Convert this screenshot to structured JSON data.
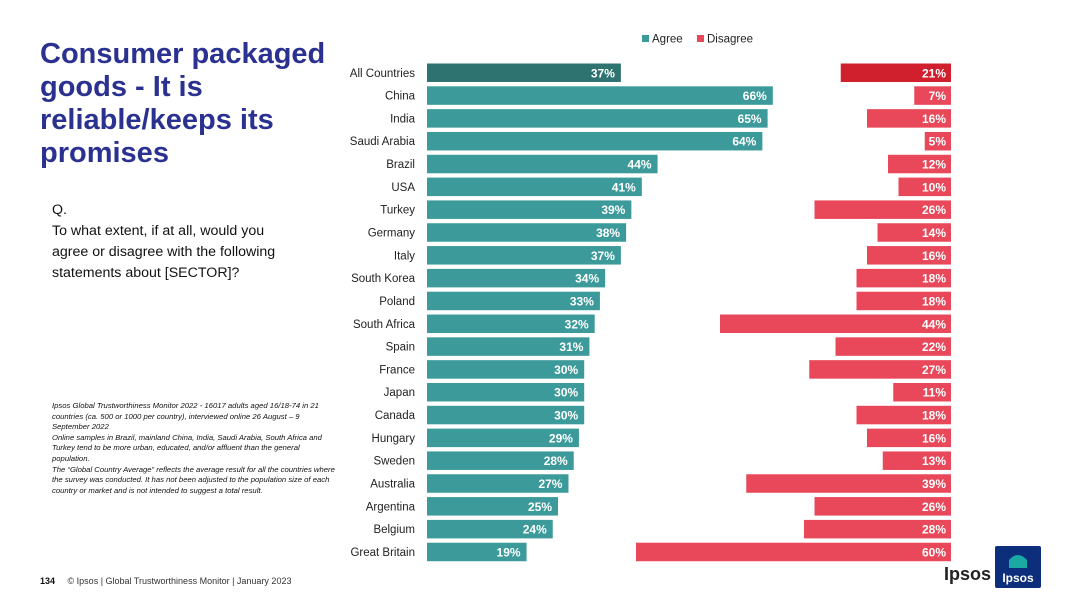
{
  "slide": {
    "title": "Consumer packaged goods - It is reliable/keeps its promises",
    "question_q": "Q.",
    "question_text": "To what extent, if at all, would you agree or disagree with the following statements about [SECTOR]?",
    "notes": [
      "Ipsos Global Trustworthiness Monitor 2022 - 16017 adults aged 16/18-74 in 21 countries (ca. 500 or 1000 per country), interviewed online 26 August – 9 September 2022",
      "Online samples in Brazil, mainland China, India, Saudi Arabia, South Africa and Turkey tend to be more urban, educated, and/or affluent than the general population.",
      "The “Global Country Average” reflects the average result for all the countries where the survey was conducted. It has not been adjusted to the population size of each country or market and is not intended to suggest a total result."
    ],
    "page_number": "134",
    "footer_text": "© Ipsos | Global Trustworthiness Monitor | January 2023",
    "brand_word": "Ipsos",
    "logo_text": "Ipsos"
  },
  "colors": {
    "agree": "#3d9a9a",
    "agree_highlight": "#2f7370",
    "disagree": "#e8485a",
    "disagree_highlight": "#d0202d",
    "title": "#2a3191"
  },
  "chart_data": {
    "type": "bar",
    "orientation": "horizontal",
    "legend": [
      "Agree",
      "Disagree"
    ],
    "legend_position": "top",
    "categories": [
      "All Countries",
      "China",
      "India",
      "Saudi Arabia",
      "Brazil",
      "USA",
      "Turkey",
      "Germany",
      "Italy",
      "South Korea",
      "Poland",
      "South Africa",
      "Spain",
      "France",
      "Japan",
      "Canada",
      "Hungary",
      "Sweden",
      "Australia",
      "Argentina",
      "Belgium",
      "Great Britain"
    ],
    "series": [
      {
        "name": "Agree",
        "values": [
          37,
          66,
          65,
          64,
          44,
          41,
          39,
          38,
          37,
          34,
          33,
          32,
          31,
          30,
          30,
          30,
          29,
          28,
          27,
          25,
          24,
          19
        ]
      },
      {
        "name": "Disagree",
        "values": [
          21,
          7,
          16,
          5,
          12,
          10,
          26,
          14,
          16,
          18,
          18,
          44,
          22,
          27,
          11,
          18,
          16,
          13,
          39,
          26,
          28,
          60
        ]
      }
    ],
    "value_suffix": "%"
  }
}
